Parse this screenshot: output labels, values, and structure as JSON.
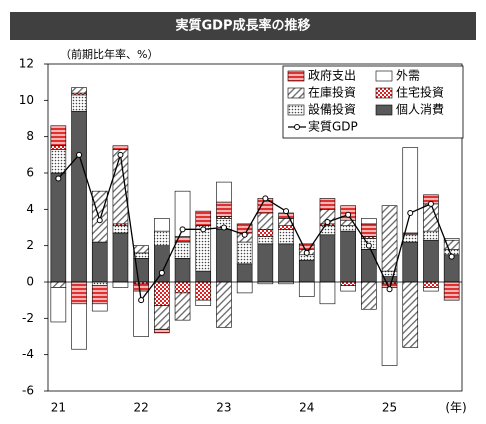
{
  "chart_data": {
    "type": "stacked-bar-line",
    "title": "実質GDP成長率の推移",
    "y_label": "（前期比年率、%）",
    "x_unit": "(年)",
    "categories": [
      "21",
      null,
      null,
      null,
      "22",
      null,
      null,
      null,
      "23",
      null,
      null,
      null,
      "24",
      null,
      null,
      null,
      "25",
      null,
      null,
      null
    ],
    "ylim": [
      -6,
      12
    ],
    "yticks": [
      -6,
      -4,
      -2,
      0,
      2,
      4,
      6,
      8,
      10,
      12
    ],
    "series": [
      {
        "name": "個人消費",
        "color": "#595959",
        "pattern": "solid",
        "values": [
          6.0,
          9.4,
          2.2,
          2.7,
          1.3,
          2.0,
          1.3,
          0.6,
          2.9,
          1.0,
          2.1,
          2.1,
          1.2,
          2.6,
          2.8,
          1.8,
          0.3,
          2.2,
          2.3,
          1.5
        ]
      },
      {
        "name": "設備投資",
        "color": "#7f7f7f",
        "pattern": "dots",
        "values": [
          1.3,
          0.9,
          -0.2,
          0.4,
          0.3,
          0.8,
          0.9,
          2.5,
          0.6,
          1.2,
          0.4,
          0.8,
          0.3,
          0.5,
          0.3,
          0.6,
          0.3,
          0.4,
          0.5,
          0.3
        ]
      },
      {
        "name": "住宅投資",
        "color": "#e02020",
        "pattern": "dots-red",
        "values": [
          0.2,
          0.1,
          0.0,
          0.1,
          -0.1,
          -1.3,
          -0.6,
          -1.0,
          0.1,
          0.0,
          0.4,
          0.2,
          0.0,
          0.1,
          -0.2,
          0.1,
          -0.1,
          0.0,
          -0.3,
          0.0
        ]
      },
      {
        "name": "在庫投資",
        "color": "#7f7f7f",
        "pattern": "hatch",
        "values": [
          -0.3,
          0.3,
          2.8,
          4.1,
          0.4,
          -1.3,
          -1.5,
          0.0,
          -2.5,
          0.5,
          0.9,
          0.4,
          0.3,
          0.8,
          0.3,
          -1.5,
          3.6,
          -3.6,
          1.5,
          0.5
        ]
      },
      {
        "name": "政府支出",
        "color": "#e84a4a",
        "pattern": "stripe",
        "values": [
          1.1,
          -1.2,
          -1.0,
          0.2,
          -0.4,
          -0.2,
          0.3,
          0.8,
          0.8,
          0.5,
          0.8,
          0.3,
          0.3,
          0.6,
          0.8,
          0.7,
          -0.2,
          0.1,
          0.5,
          -1.0
        ]
      },
      {
        "name": "外需",
        "color": "#ffffff",
        "pattern": "none",
        "values": [
          -1.9,
          -2.5,
          -0.4,
          -0.3,
          -2.5,
          0.7,
          2.5,
          -0.3,
          1.1,
          -0.6,
          -0.1,
          -0.1,
          -0.8,
          -1.2,
          -0.3,
          0.3,
          -4.3,
          4.7,
          -0.2,
          0.1
        ]
      }
    ],
    "line": {
      "name": "実質GDP",
      "color": "#000000",
      "values": [
        5.7,
        7.0,
        3.4,
        7.0,
        -1.0,
        0.5,
        2.9,
        2.9,
        3.0,
        2.6,
        4.6,
        3.9,
        1.6,
        3.3,
        3.7,
        2.0,
        -0.4,
        3.8,
        4.3,
        1.4
      ]
    }
  }
}
